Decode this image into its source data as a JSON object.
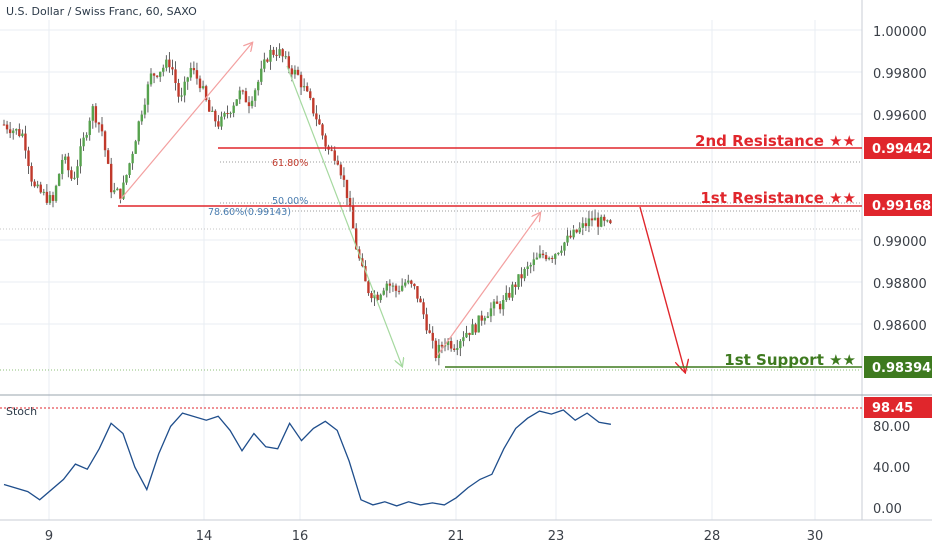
{
  "header": {
    "title": "U.S. Dollar / Swiss Franc, 60, SAXO"
  },
  "colors": {
    "resistance": "#e0262c",
    "support": "#3e7a1f",
    "candle_up": "#56a24d",
    "candle_down": "#c0392b",
    "wick": "#3a3a3a",
    "stoch": "#1f4e8c",
    "arrow_up": "#f3a0a0",
    "arrow_down": "#a6d9a0",
    "fib": "#9b9b9b",
    "grid": "#e9eef3"
  },
  "chart_data": [
    {
      "type": "candlestick",
      "title": "U.S. Dollar / Swiss Franc, 60, SAXO",
      "y_ticks": [
        "1.00000",
        "0.99800",
        "0.99600",
        "0.99000",
        "0.98800",
        "0.98600"
      ],
      "x_ticks": [
        "9",
        "14",
        "16",
        "21",
        "23",
        "28",
        "30"
      ],
      "ylim": [
        0.9822,
        1.0005
      ],
      "levels": [
        {
          "name": "2nd Resistance ★★",
          "value": "0.99442",
          "color": "#e0262c"
        },
        {
          "name": "1st Resistance ★★",
          "value": "0.99168",
          "color": "#e0262c"
        },
        {
          "name": "1st Support ★★",
          "value": "0.98394",
          "color": "#3e7a1f"
        }
      ],
      "fib_labels": [
        "61.80%",
        "50.00%",
        "78.60%(0.99143)"
      ],
      "close_path": [
        [
          0,
          0.9955
        ],
        [
          2,
          0.995
        ],
        [
          3,
          0.9925
        ],
        [
          5,
          0.9918
        ],
        [
          6,
          0.994
        ],
        [
          7,
          0.9928
        ],
        [
          8,
          0.9945
        ],
        [
          9,
          0.9963
        ],
        [
          10,
          0.9952
        ],
        [
          11,
          0.9923
        ],
        [
          12,
          0.9922
        ],
        [
          13,
          0.994
        ],
        [
          14,
          0.9961
        ],
        [
          15,
          0.9978
        ],
        [
          17,
          0.9985
        ],
        [
          18,
          0.9965
        ],
        [
          19,
          0.9982
        ],
        [
          20,
          0.9975
        ],
        [
          21,
          0.996
        ],
        [
          22,
          0.9955
        ],
        [
          23,
          0.9962
        ],
        [
          24,
          0.997
        ],
        [
          25,
          0.9966
        ],
        [
          26,
          0.9976
        ],
        [
          27,
          0.9989
        ],
        [
          28,
          0.999
        ],
        [
          29,
          0.9983
        ],
        [
          30,
          0.9978
        ],
        [
          31,
          0.9968
        ],
        [
          32,
          0.9957
        ],
        [
          33,
          0.9943
        ],
        [
          34,
          0.994
        ],
        [
          35,
          0.9922
        ],
        [
          36,
          0.9895
        ],
        [
          37,
          0.9877
        ],
        [
          38,
          0.9873
        ],
        [
          39,
          0.988
        ],
        [
          40,
          0.9876
        ],
        [
          41,
          0.988
        ],
        [
          42,
          0.9876
        ],
        [
          43,
          0.9862
        ],
        [
          44,
          0.9845
        ],
        [
          45,
          0.9852
        ],
        [
          46,
          0.985
        ],
        [
          47,
          0.9856
        ],
        [
          48,
          0.9858
        ],
        [
          49,
          0.9865
        ],
        [
          50,
          0.9868
        ],
        [
          51,
          0.987
        ],
        [
          52,
          0.9878
        ],
        [
          53,
          0.9884
        ],
        [
          54,
          0.9889
        ],
        [
          55,
          0.9893
        ],
        [
          56,
          0.9893
        ],
        [
          57,
          0.9898
        ],
        [
          58,
          0.9902
        ],
        [
          59,
          0.9906
        ],
        [
          60,
          0.991
        ],
        [
          61,
          0.9908
        ],
        [
          62,
          0.9906
        ]
      ]
    },
    {
      "type": "line",
      "title": "Stoch",
      "y_ticks": [
        "80.00",
        "40.00",
        "0.00"
      ],
      "ylim": [
        0,
        100
      ],
      "level": "98.45",
      "series": [
        {
          "values": [
            [
              0,
              25
            ],
            [
              2,
              18
            ],
            [
              3,
              10
            ],
            [
              5,
              30
            ],
            [
              6,
              45
            ],
            [
              7,
              40
            ],
            [
              8,
              60
            ],
            [
              9,
              85
            ],
            [
              10,
              75
            ],
            [
              11,
              42
            ],
            [
              12,
              20
            ],
            [
              13,
              55
            ],
            [
              14,
              82
            ],
            [
              15,
              95
            ],
            [
              17,
              88
            ],
            [
              18,
              92
            ],
            [
              19,
              78
            ],
            [
              20,
              58
            ],
            [
              21,
              75
            ],
            [
              22,
              62
            ],
            [
              23,
              60
            ],
            [
              24,
              85
            ],
            [
              25,
              68
            ],
            [
              26,
              80
            ],
            [
              27,
              87
            ],
            [
              28,
              78
            ],
            [
              29,
              48
            ],
            [
              30,
              10
            ],
            [
              31,
              5
            ],
            [
              32,
              8
            ],
            [
              33,
              4
            ],
            [
              34,
              8
            ],
            [
              35,
              5
            ],
            [
              36,
              7
            ],
            [
              37,
              5
            ],
            [
              38,
              12
            ],
            [
              39,
              22
            ],
            [
              40,
              30
            ],
            [
              41,
              35
            ],
            [
              42,
              60
            ],
            [
              43,
              80
            ],
            [
              44,
              90
            ],
            [
              45,
              97
            ],
            [
              46,
              94
            ],
            [
              47,
              98
            ],
            [
              48,
              88
            ],
            [
              49,
              95
            ],
            [
              50,
              86
            ],
            [
              51,
              84
            ]
          ]
        }
      ]
    }
  ]
}
